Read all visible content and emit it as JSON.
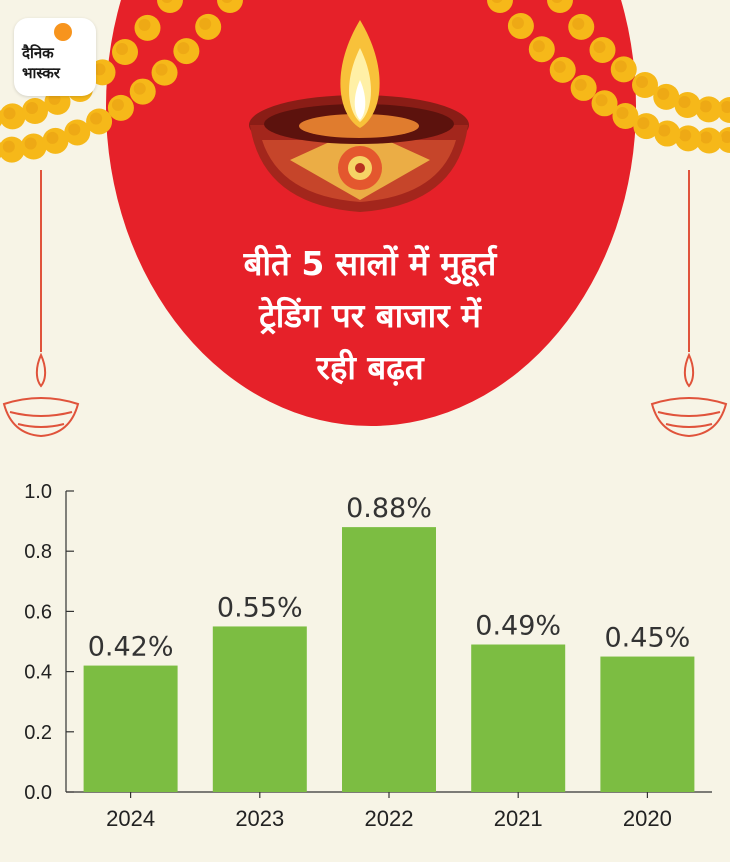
{
  "brand": {
    "logo_line1": "दैनिक",
    "logo_line2": "भास्कर",
    "colors": {
      "background": "#f7f4e6",
      "circle": "#e62129",
      "marigold": "#f6b819",
      "bar": "#7cbd42"
    }
  },
  "headline": {
    "line1": "बीते 5 सालों में मुहूर्त",
    "line2": "ट्रेडिंग पर बाजार में",
    "line3": "रही बढ़त"
  },
  "decor": [
    "marigold-garland",
    "diya-lamp",
    "hanging-diya"
  ],
  "chart_data": {
    "type": "bar",
    "categories": [
      "2024",
      "2023",
      "2022",
      "2021",
      "2020"
    ],
    "values": [
      0.42,
      0.55,
      0.88,
      0.49,
      0.45
    ],
    "data_labels": [
      "0.42%",
      "0.55%",
      "0.88%",
      "0.49%",
      "0.45%"
    ],
    "yticks": [
      "0.0",
      "0.2",
      "0.4",
      "0.6",
      "0.8",
      "1.0"
    ],
    "ytick_values": [
      0.0,
      0.2,
      0.4,
      0.6,
      0.8,
      1.0
    ],
    "ylim": [
      0,
      1.0
    ],
    "grid": false,
    "legend": "none",
    "title": "",
    "xlabel": "",
    "ylabel": ""
  }
}
